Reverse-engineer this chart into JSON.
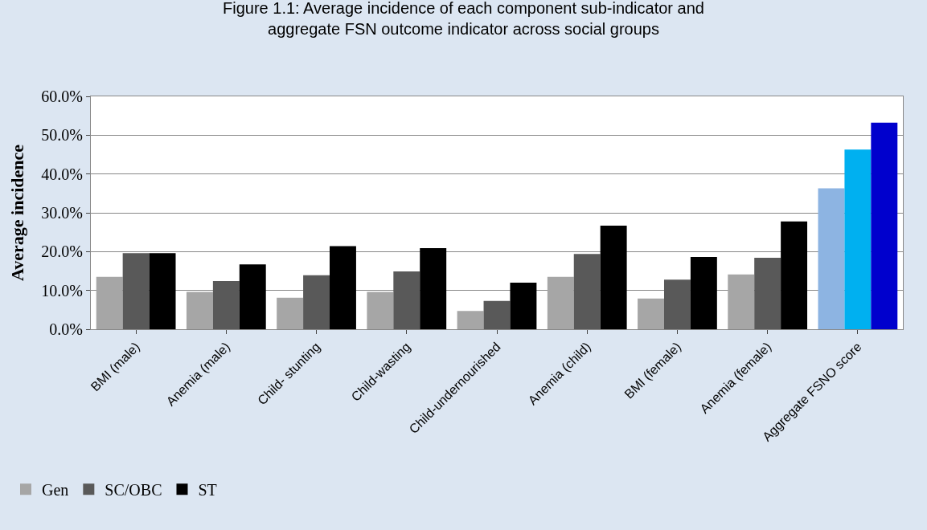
{
  "chart_data": {
    "type": "bar",
    "title": "Figure 1.1: Average incidence of each component sub-indicator and\naggregate FSN outcome indicator across social groups",
    "ylabel": "Average incidence",
    "categories": [
      "BMI (male)",
      "Anemia (male)",
      "Child- stunting",
      "Child-wasting",
      "Child-undernourished",
      "Anemia (child)",
      "BMI (female)",
      "Anemia (female)",
      "Aggregate FSNO score"
    ],
    "series": [
      {
        "name": "Gen",
        "color": "#a6a6a6",
        "colors": [
          "#a6a6a6",
          "#a6a6a6",
          "#a6a6a6",
          "#a6a6a6",
          "#a6a6a6",
          "#a6a6a6",
          "#a6a6a6",
          "#a6a6a6",
          "#8db4e2"
        ],
        "values": [
          13.5,
          9.6,
          8.1,
          9.6,
          4.7,
          13.5,
          7.9,
          14.1,
          36.3
        ]
      },
      {
        "name": "SC/OBC",
        "color": "#595959",
        "colors": [
          "#595959",
          "#595959",
          "#595959",
          "#595959",
          "#595959",
          "#595959",
          "#595959",
          "#595959",
          "#00b0f0"
        ],
        "values": [
          19.6,
          12.4,
          13.9,
          14.9,
          7.3,
          19.4,
          12.8,
          18.4,
          46.3
        ]
      },
      {
        "name": "ST",
        "color": "#000000",
        "colors": [
          "#000000",
          "#000000",
          "#000000",
          "#000000",
          "#000000",
          "#000000",
          "#000000",
          "#000000",
          "#0000cd"
        ],
        "values": [
          19.6,
          16.7,
          21.4,
          20.9,
          12.0,
          26.7,
          18.6,
          27.8,
          53.2
        ]
      }
    ],
    "ylim": [
      0,
      60
    ],
    "yticks": [
      {
        "value": 0,
        "label": "0.0%"
      },
      {
        "value": 10,
        "label": "10.0%"
      },
      {
        "value": 20,
        "label": "20.0%"
      },
      {
        "value": 30,
        "label": "30.0%"
      },
      {
        "value": 40,
        "label": "40.0%"
      },
      {
        "value": 50,
        "label": "50.0%"
      },
      {
        "value": 60,
        "label": "60.0%"
      }
    ],
    "grid": "y",
    "legend": "bottom left"
  }
}
